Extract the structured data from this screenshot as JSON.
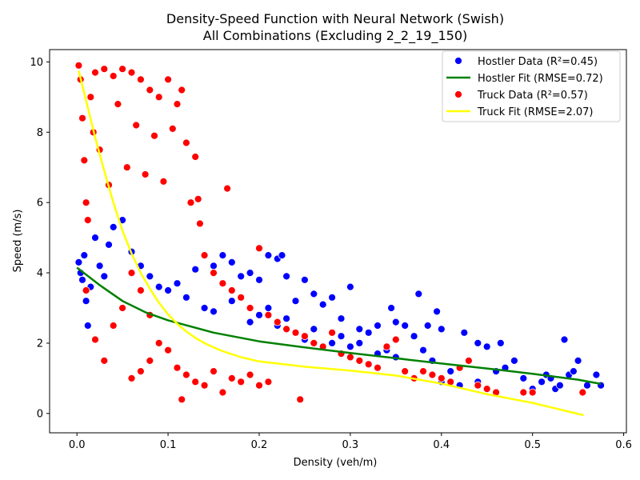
{
  "chart_data": {
    "type": "scatter",
    "title": "Density-Speed Function with Neural Network (Swish)",
    "subtitle": "All Combinations (Excluding 2_2_19_150)",
    "xlabel": "Density (veh/m)",
    "ylabel": "Speed (m/s)",
    "xlim": [
      -0.03,
      0.603
    ],
    "ylim": [
      -0.55,
      10.35
    ],
    "xticks": [
      0.0,
      0.1,
      0.2,
      0.3,
      0.4,
      0.5,
      0.6
    ],
    "xtick_labels": [
      "0.0",
      "0.1",
      "0.2",
      "0.3",
      "0.4",
      "0.5",
      "0.6"
    ],
    "yticks": [
      0,
      2,
      4,
      6,
      8,
      10
    ],
    "ytick_labels": [
      "0",
      "2",
      "4",
      "6",
      "8",
      "10"
    ],
    "grid": false,
    "legend_position": "top-right",
    "legend": [
      {
        "label": "Hostler Data (R²=0.45)",
        "kind": "marker",
        "color": "#0000ff"
      },
      {
        "label": "Hostler Fit (RMSE=0.72)",
        "kind": "line",
        "color": "#008000"
      },
      {
        "label": "Truck Data (R²=0.57)",
        "kind": "marker",
        "color": "#ff0000"
      },
      {
        "label": "Truck Fit (RMSE=2.07)",
        "kind": "line",
        "color": "#ffff00"
      }
    ],
    "series": [
      {
        "name": "Hostler Data (R²=0.45)",
        "type": "scatter",
        "color": "#0000ff",
        "points": [
          [
            0.002,
            4.3
          ],
          [
            0.004,
            4.0
          ],
          [
            0.006,
            3.8
          ],
          [
            0.008,
            4.5
          ],
          [
            0.01,
            3.2
          ],
          [
            0.012,
            2.5
          ],
          [
            0.015,
            3.6
          ],
          [
            0.02,
            5.0
          ],
          [
            0.025,
            4.2
          ],
          [
            0.03,
            3.9
          ],
          [
            0.035,
            4.8
          ],
          [
            0.04,
            5.3
          ],
          [
            0.05,
            5.5
          ],
          [
            0.06,
            4.6
          ],
          [
            0.07,
            4.2
          ],
          [
            0.08,
            3.9
          ],
          [
            0.09,
            3.6
          ],
          [
            0.1,
            3.5
          ],
          [
            0.11,
            3.7
          ],
          [
            0.12,
            3.3
          ],
          [
            0.13,
            4.1
          ],
          [
            0.14,
            3.0
          ],
          [
            0.15,
            4.2
          ],
          [
            0.16,
            4.5
          ],
          [
            0.17,
            4.3
          ],
          [
            0.18,
            3.9
          ],
          [
            0.19,
            4.0
          ],
          [
            0.2,
            3.8
          ],
          [
            0.21,
            4.5
          ],
          [
            0.22,
            4.4
          ],
          [
            0.225,
            4.5
          ],
          [
            0.23,
            3.9
          ],
          [
            0.24,
            3.2
          ],
          [
            0.25,
            3.8
          ],
          [
            0.26,
            3.4
          ],
          [
            0.27,
            3.1
          ],
          [
            0.28,
            3.3
          ],
          [
            0.29,
            2.7
          ],
          [
            0.3,
            3.6
          ],
          [
            0.31,
            2.4
          ],
          [
            0.32,
            2.3
          ],
          [
            0.33,
            2.5
          ],
          [
            0.34,
            1.8
          ],
          [
            0.345,
            3.0
          ],
          [
            0.35,
            2.6
          ],
          [
            0.36,
            2.5
          ],
          [
            0.37,
            2.2
          ],
          [
            0.375,
            3.4
          ],
          [
            0.38,
            1.8
          ],
          [
            0.385,
            2.5
          ],
          [
            0.39,
            1.5
          ],
          [
            0.395,
            2.9
          ],
          [
            0.4,
            2.4
          ],
          [
            0.41,
            1.2
          ],
          [
            0.42,
            1.3
          ],
          [
            0.425,
            2.3
          ],
          [
            0.43,
            1.5
          ],
          [
            0.44,
            2.0
          ],
          [
            0.45,
            1.9
          ],
          [
            0.46,
            1.2
          ],
          [
            0.465,
            2.0
          ],
          [
            0.47,
            1.3
          ],
          [
            0.48,
            1.5
          ],
          [
            0.49,
            1.0
          ],
          [
            0.5,
            0.7
          ],
          [
            0.51,
            0.9
          ],
          [
            0.515,
            1.1
          ],
          [
            0.52,
            1.0
          ],
          [
            0.525,
            0.7
          ],
          [
            0.53,
            0.8
          ],
          [
            0.535,
            2.1
          ],
          [
            0.54,
            1.1
          ],
          [
            0.545,
            1.2
          ],
          [
            0.55,
            1.5
          ],
          [
            0.56,
            0.8
          ],
          [
            0.57,
            1.1
          ],
          [
            0.575,
            0.8
          ],
          [
            0.2,
            2.8
          ],
          [
            0.22,
            2.5
          ],
          [
            0.25,
            2.1
          ],
          [
            0.28,
            2.0
          ],
          [
            0.3,
            1.9
          ],
          [
            0.33,
            1.7
          ],
          [
            0.35,
            1.6
          ],
          [
            0.38,
            1.2
          ],
          [
            0.4,
            0.9
          ],
          [
            0.42,
            0.8
          ],
          [
            0.44,
            0.9
          ],
          [
            0.15,
            2.9
          ],
          [
            0.17,
            3.2
          ],
          [
            0.19,
            2.6
          ],
          [
            0.21,
            3.0
          ],
          [
            0.23,
            2.7
          ],
          [
            0.26,
            2.4
          ],
          [
            0.29,
            2.2
          ],
          [
            0.31,
            2.0
          ]
        ]
      },
      {
        "name": "Truck Data (R²=0.57)",
        "type": "scatter",
        "color": "#ff0000",
        "points": [
          [
            0.002,
            9.9
          ],
          [
            0.004,
            9.5
          ],
          [
            0.006,
            8.4
          ],
          [
            0.008,
            7.2
          ],
          [
            0.01,
            6.0
          ],
          [
            0.012,
            5.5
          ],
          [
            0.015,
            9.0
          ],
          [
            0.018,
            8.0
          ],
          [
            0.02,
            9.7
          ],
          [
            0.025,
            7.5
          ],
          [
            0.03,
            9.8
          ],
          [
            0.035,
            6.5
          ],
          [
            0.04,
            9.6
          ],
          [
            0.045,
            8.8
          ],
          [
            0.05,
            9.8
          ],
          [
            0.055,
            7.0
          ],
          [
            0.06,
            9.7
          ],
          [
            0.065,
            8.2
          ],
          [
            0.07,
            9.5
          ],
          [
            0.075,
            6.8
          ],
          [
            0.08,
            9.2
          ],
          [
            0.085,
            7.9
          ],
          [
            0.09,
            9.0
          ],
          [
            0.095,
            6.6
          ],
          [
            0.1,
            9.5
          ],
          [
            0.105,
            8.1
          ],
          [
            0.11,
            8.8
          ],
          [
            0.115,
            9.2
          ],
          [
            0.12,
            7.7
          ],
          [
            0.125,
            6.0
          ],
          [
            0.13,
            7.3
          ],
          [
            0.133,
            6.1
          ],
          [
            0.135,
            5.4
          ],
          [
            0.14,
            4.5
          ],
          [
            0.15,
            4.0
          ],
          [
            0.16,
            3.7
          ],
          [
            0.165,
            6.4
          ],
          [
            0.17,
            3.5
          ],
          [
            0.18,
            3.3
          ],
          [
            0.19,
            3.0
          ],
          [
            0.2,
            4.7
          ],
          [
            0.21,
            2.8
          ],
          [
            0.22,
            2.6
          ],
          [
            0.23,
            2.4
          ],
          [
            0.24,
            2.3
          ],
          [
            0.245,
            0.4
          ],
          [
            0.25,
            2.2
          ],
          [
            0.26,
            2.0
          ],
          [
            0.27,
            1.9
          ],
          [
            0.28,
            2.3
          ],
          [
            0.29,
            1.7
          ],
          [
            0.3,
            1.6
          ],
          [
            0.31,
            1.5
          ],
          [
            0.32,
            1.4
          ],
          [
            0.33,
            1.3
          ],
          [
            0.34,
            1.9
          ],
          [
            0.35,
            2.1
          ],
          [
            0.36,
            1.2
          ],
          [
            0.37,
            1.0
          ],
          [
            0.38,
            1.2
          ],
          [
            0.39,
            1.1
          ],
          [
            0.4,
            1.0
          ],
          [
            0.41,
            0.9
          ],
          [
            0.42,
            1.3
          ],
          [
            0.43,
            1.5
          ],
          [
            0.44,
            0.8
          ],
          [
            0.45,
            0.7
          ],
          [
            0.46,
            0.6
          ],
          [
            0.49,
            0.6
          ],
          [
            0.5,
            0.6
          ],
          [
            0.555,
            0.6
          ],
          [
            0.115,
            0.4
          ],
          [
            0.06,
            1.0
          ],
          [
            0.07,
            1.2
          ],
          [
            0.08,
            1.5
          ],
          [
            0.09,
            2.0
          ],
          [
            0.1,
            1.8
          ],
          [
            0.11,
            1.3
          ],
          [
            0.12,
            1.1
          ],
          [
            0.13,
            0.9
          ],
          [
            0.14,
            0.8
          ],
          [
            0.15,
            1.2
          ],
          [
            0.16,
            0.6
          ],
          [
            0.17,
            1.0
          ],
          [
            0.18,
            0.9
          ],
          [
            0.19,
            1.1
          ],
          [
            0.2,
            0.8
          ],
          [
            0.21,
            0.9
          ],
          [
            0.01,
            3.5
          ],
          [
            0.02,
            2.1
          ],
          [
            0.03,
            1.5
          ],
          [
            0.04,
            2.5
          ],
          [
            0.05,
            3.0
          ],
          [
            0.06,
            4.0
          ],
          [
            0.07,
            3.5
          ],
          [
            0.08,
            2.8
          ]
        ]
      },
      {
        "name": "Hostler Fit (RMSE=0.72)",
        "type": "line",
        "color": "#008000",
        "x": [
          0.0,
          0.025,
          0.05,
          0.075,
          0.1,
          0.15,
          0.2,
          0.25,
          0.3,
          0.35,
          0.4,
          0.45,
          0.5,
          0.55,
          0.575
        ],
        "y": [
          4.15,
          3.65,
          3.2,
          2.88,
          2.65,
          2.3,
          2.05,
          1.88,
          1.72,
          1.57,
          1.42,
          1.28,
          1.13,
          0.96,
          0.84
        ]
      },
      {
        "name": "Truck Fit (RMSE=2.07)",
        "type": "line",
        "color": "#ffff00",
        "x": [
          0.002,
          0.01,
          0.02,
          0.03,
          0.04,
          0.05,
          0.06,
          0.07,
          0.08,
          0.09,
          0.1,
          0.11,
          0.12,
          0.13,
          0.14,
          0.15,
          0.16,
          0.18,
          0.2,
          0.25,
          0.3,
          0.35,
          0.4,
          0.45,
          0.5,
          0.556
        ],
        "y": [
          9.75,
          8.9,
          7.85,
          6.9,
          6.0,
          5.2,
          4.55,
          4.0,
          3.55,
          3.15,
          2.82,
          2.55,
          2.33,
          2.15,
          2.0,
          1.88,
          1.77,
          1.6,
          1.48,
          1.33,
          1.22,
          1.08,
          0.85,
          0.55,
          0.3,
          -0.05
        ]
      }
    ]
  }
}
